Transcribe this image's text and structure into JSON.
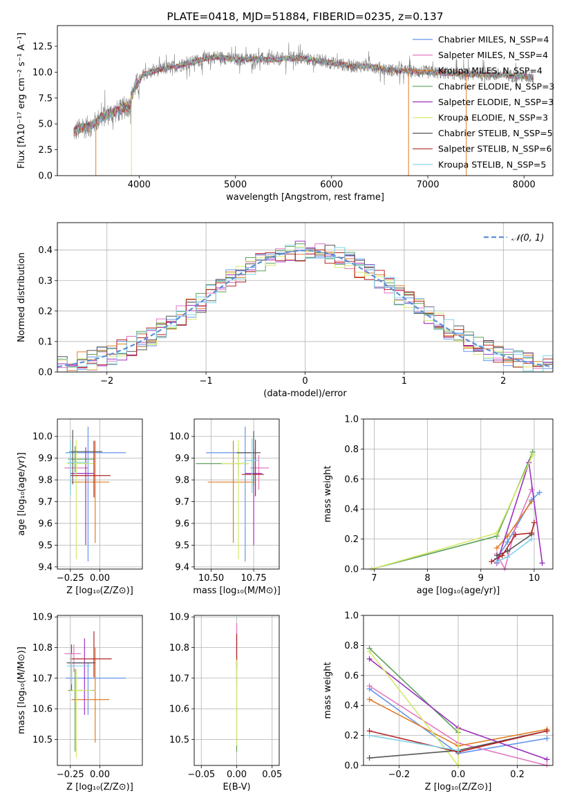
{
  "colors": {
    "chabrier_miles": "#6495ed",
    "salpeter_miles": "#e377c2",
    "kroupa_miles": "#e07b24",
    "chabrier_elodie": "#5aa05a",
    "salpeter_elodie": "#9b30c0",
    "kroupa_elodie": "#d4e86a",
    "chabrier_stelib": "#555555",
    "salpeter_stelib": "#b22222",
    "kroupa_stelib": "#7fd3e6",
    "gauss": "#5b8fd8"
  },
  "chart_data": [
    {
      "id": "spectrum",
      "type": "line",
      "title": "PLATE=0418, MJD=51884, FIBERID=0235, z=0.137",
      "xlabel": "wavelength [Angstrom, rest frame]",
      "ylabel": "Flux [fλ10⁻¹⁷ erg cm⁻² s⁻¹ A⁻¹]",
      "xlim": [
        3150,
        8300
      ],
      "ylim": [
        0,
        14.5
      ],
      "xticks": [
        "4000",
        "5000",
        "6000",
        "7000",
        "8000"
      ],
      "yticks": [
        "0.0",
        "2.5",
        "5.0",
        "7.5",
        "10.0",
        "12.5"
      ],
      "legend_position": "top-right",
      "legend": [
        {
          "text": "Chabrier MILES, N_SSP=4",
          "color": "#6495ed"
        },
        {
          "text": "Salpeter MILES, N_SSP=4",
          "color": "#e377c2"
        },
        {
          "text": "Kroupa MILES, N_SSP=4",
          "color": "#e07b24"
        },
        {
          "text": "Chabrier ELODIE, N_SSP=3",
          "color": "#5aa05a"
        },
        {
          "text": "Salpeter ELODIE, N_SSP=3",
          "color": "#9b30c0"
        },
        {
          "text": "Kroupa ELODIE, N_SSP=3",
          "color": "#d4e86a"
        },
        {
          "text": "Chabrier STELIB, N_SSP=5",
          "color": "#555555"
        },
        {
          "text": "Salpeter STELIB, N_SSP=6",
          "color": "#b22222"
        },
        {
          "text": "Kroupa STELIB, N_SSP=5",
          "color": "#7fd3e6"
        }
      ],
      "continuum": [
        [
          3320,
          4.2
        ],
        [
          3400,
          4.6
        ],
        [
          3500,
          4.8
        ],
        [
          3600,
          5.6
        ],
        [
          3700,
          6.0
        ],
        [
          3800,
          6.3
        ],
        [
          3900,
          6.8
        ],
        [
          3950,
          8.5
        ],
        [
          4050,
          9.8
        ],
        [
          4200,
          10.2
        ],
        [
          4400,
          10.6
        ],
        [
          4600,
          11.1
        ],
        [
          4800,
          11.5
        ],
        [
          5000,
          11.2
        ],
        [
          5200,
          11.3
        ],
        [
          5400,
          11.2
        ],
        [
          5600,
          11.4
        ],
        [
          5800,
          11.2
        ],
        [
          6000,
          10.9
        ],
        [
          6200,
          10.6
        ],
        [
          6400,
          10.6
        ],
        [
          6600,
          10.2
        ],
        [
          6800,
          10.1
        ],
        [
          7000,
          10.0
        ],
        [
          7200,
          9.9
        ],
        [
          7400,
          9.8
        ],
        [
          7600,
          9.8
        ],
        [
          7800,
          9.7
        ],
        [
          8000,
          9.6
        ],
        [
          8100,
          9.5
        ]
      ],
      "model_dips": [
        {
          "x": 3550,
          "color": "#e07b24"
        },
        {
          "x": 3920,
          "color": "#d4e86a"
        },
        {
          "x": 6800,
          "color": "#e07b24"
        },
        {
          "x": 7400,
          "color": "#e07b24"
        }
      ]
    },
    {
      "id": "residuals",
      "type": "bar",
      "xlabel": "(data-model)/error",
      "ylabel": "Normed distribution",
      "xlim": [
        -2.5,
        2.5
      ],
      "ylim": [
        0,
        0.49
      ],
      "xticks": [
        "−2",
        "−1",
        "0",
        "1",
        "2"
      ],
      "yticks": [
        "0.0",
        "0.1",
        "0.2",
        "0.3",
        "0.4"
      ],
      "grid": true,
      "legend_position": "top-right",
      "legend": [
        {
          "text": "𝒩(0, 1)",
          "color": "#5b8fd8"
        }
      ],
      "bin_width": 0.1
    },
    {
      "id": "age-Z",
      "type": "scatter",
      "xlabel": "Z [log₁₀(Z/Z⊙)]",
      "ylabel": "age  [log₁₀(age/yr)]",
      "xlim": [
        -0.36,
        0.36
      ],
      "ylim": [
        9.39,
        10.08
      ],
      "xticks": [
        "−0.25",
        "0.00"
      ],
      "yticks": [
        "9.4",
        "9.5",
        "9.6",
        "9.7",
        "9.8",
        "9.9",
        "10.0"
      ],
      "grid": true,
      "points": [
        {
          "x": -0.1,
          "y": 9.925,
          "xerr": [
            0.19,
            0.32
          ],
          "yerr": [
            0.5,
            0.12
          ],
          "color": "#6495ed"
        },
        {
          "x": -0.25,
          "y": 9.855,
          "xerr": [
            0.05,
            0.15
          ],
          "yerr": [
            0.1,
            0.06
          ],
          "color": "#e377c2"
        },
        {
          "x": -0.04,
          "y": 9.79,
          "xerr": [
            0.2,
            0.12
          ],
          "yerr": [
            0.28,
            0.19
          ],
          "color": "#e07b24"
        },
        {
          "x": -0.21,
          "y": 9.895,
          "xerr": [
            0.06,
            0.16
          ],
          "yerr": [
            0.06,
            0.06
          ],
          "color": "#5aa05a"
        },
        {
          "x": -0.12,
          "y": 9.83,
          "xerr": [
            0.13,
            0.07
          ],
          "yerr": [
            0.33,
            0.12
          ],
          "color": "#9b30c0"
        },
        {
          "x": -0.2,
          "y": 9.875,
          "xerr": [
            0.08,
            0.17
          ],
          "yerr": [
            0.44,
            0.11
          ],
          "color": "#d4e86a"
        },
        {
          "x": -0.23,
          "y": 9.93,
          "xerr": [
            0.03,
            0.25
          ],
          "yerr": [
            0.15,
            0.1
          ],
          "color": "#555555"
        },
        {
          "x": -0.05,
          "y": 9.82,
          "xerr": [
            0.2,
            0.14
          ],
          "yerr": [
            0.1,
            0.16
          ],
          "color": "#b22222"
        },
        {
          "x": -0.25,
          "y": 9.88,
          "xerr": [
            0.02,
            0.16
          ],
          "yerr": [
            0.15,
            0.1
          ],
          "color": "#7fd3e6"
        }
      ]
    },
    {
      "id": "age-mass",
      "type": "scatter",
      "xlabel": "mass [log₁₀(M/M⊙)]",
      "ylabel": "",
      "xlim": [
        10.4,
        10.9
      ],
      "ylim": [
        9.39,
        10.08
      ],
      "xticks": [
        "10.50",
        "10.75"
      ],
      "yticks": [
        "9.4",
        "9.5",
        "9.6",
        "9.7",
        "9.8",
        "9.9",
        "10.0"
      ],
      "grid": true,
      "points": [
        {
          "x": 10.7,
          "y": 9.925,
          "xerr": [
            0.23,
            0.05
          ],
          "yerr": [
            0.5,
            0.12
          ],
          "color": "#6495ed"
        },
        {
          "x": 10.78,
          "y": 9.855,
          "xerr": [
            0.05,
            0.06
          ],
          "yerr": [
            0.1,
            0.06
          ],
          "color": "#e377c2"
        },
        {
          "x": 10.63,
          "y": 9.79,
          "xerr": [
            0.15,
            0.12
          ],
          "yerr": [
            0.28,
            0.19
          ],
          "color": "#e07b24"
        },
        {
          "x": 10.66,
          "y": 9.875,
          "xerr": [
            0.25,
            0.06
          ],
          "yerr": [
            0.06,
            0.06
          ],
          "color": "#5aa05a"
        },
        {
          "x": 10.75,
          "y": 9.83,
          "xerr": [
            0.05,
            0.05
          ],
          "yerr": [
            0.33,
            0.12
          ],
          "color": "#9b30c0"
        },
        {
          "x": 10.66,
          "y": 9.875,
          "xerr": [
            0.1,
            0.06
          ],
          "yerr": [
            0.44,
            0.11
          ],
          "color": "#d4e86a"
        },
        {
          "x": 10.75,
          "y": 9.925,
          "xerr": [
            0.1,
            0.04
          ],
          "yerr": [
            0.15,
            0.1
          ],
          "color": "#555555"
        },
        {
          "x": 10.76,
          "y": 9.825,
          "xerr": [
            0.08,
            0.05
          ],
          "yerr": [
            0.1,
            0.16
          ],
          "color": "#b22222"
        },
        {
          "x": 10.74,
          "y": 9.89,
          "xerr": [
            0.04,
            0.04
          ],
          "yerr": [
            0.15,
            0.1
          ],
          "color": "#7fd3e6"
        }
      ]
    },
    {
      "id": "weight-age",
      "type": "line",
      "xlabel": "age  [log₁₀(age/yr)]",
      "ylabel": "mass weight",
      "xlim": [
        6.8,
        10.35
      ],
      "ylim": [
        0,
        1
      ],
      "xticks": [
        "7",
        "8",
        "9",
        "10"
      ],
      "yticks": [
        "0.0",
        "0.2",
        "0.4",
        "0.6",
        "0.8",
        "1.0"
      ],
      "grid": true,
      "series": [
        {
          "color": "#6495ed",
          "points": [
            [
              9.3,
              0.07
            ],
            [
              9.5,
              0.18
            ],
            [
              9.95,
              0.46
            ],
            [
              10.1,
              0.51
            ]
          ]
        },
        {
          "color": "#e377c2",
          "points": [
            [
              9.3,
              0.1
            ],
            [
              9.45,
              0.0
            ],
            [
              9.65,
              0.28
            ],
            [
              9.95,
              0.53
            ]
          ]
        },
        {
          "color": "#e07b24",
          "points": [
            [
              9.3,
              0.14
            ],
            [
              9.5,
              0.22
            ],
            [
              9.95,
              0.45
            ]
          ]
        },
        {
          "color": "#5aa05a",
          "points": [
            [
              6.95,
              0.0
            ],
            [
              9.3,
              0.22
            ],
            [
              9.97,
              0.78
            ]
          ]
        },
        {
          "color": "#9b30c0",
          "points": [
            [
              9.3,
              0.04
            ],
            [
              9.9,
              0.71
            ],
            [
              10.15,
              0.04
            ]
          ]
        },
        {
          "color": "#d4e86a",
          "points": [
            [
              6.95,
              0.0
            ],
            [
              9.3,
              0.24
            ],
            [
              9.97,
              0.76
            ]
          ]
        },
        {
          "color": "#555555",
          "points": [
            [
              9.3,
              0.09
            ],
            [
              9.5,
              0.12
            ],
            [
              9.95,
              0.23
            ]
          ]
        },
        {
          "color": "#b22222",
          "points": [
            [
              9.2,
              0.05
            ],
            [
              9.4,
              0.09
            ],
            [
              9.65,
              0.23
            ],
            [
              9.95,
              0.24
            ],
            [
              10.0,
              0.31
            ]
          ]
        },
        {
          "color": "#7fd3e6",
          "points": [
            [
              9.3,
              0.05
            ],
            [
              9.5,
              0.08
            ],
            [
              9.95,
              0.2
            ]
          ]
        }
      ]
    },
    {
      "id": "mass-Z",
      "type": "scatter",
      "xlabel": "Z [log₁₀(Z/Z⊙)]",
      "ylabel": "mass [log₁₀(M/M⊙)]",
      "xlim": [
        -0.36,
        0.36
      ],
      "ylim": [
        10.415,
        10.905
      ],
      "xticks": [
        "−0.25",
        "0.00"
      ],
      "yticks": [
        "10.5",
        "10.6",
        "10.7",
        "10.8",
        "10.9"
      ],
      "grid": true,
      "points": [
        {
          "x": -0.1,
          "y": 10.7,
          "xerr": [
            0.19,
            0.32
          ],
          "yerr": [
            0.12,
            0.05
          ],
          "color": "#6495ed"
        },
        {
          "x": -0.22,
          "y": 10.78,
          "xerr": [
            0.08,
            0.06
          ],
          "yerr": [
            0.06,
            0.03
          ],
          "color": "#e377c2"
        },
        {
          "x": -0.04,
          "y": 10.63,
          "xerr": [
            0.2,
            0.12
          ],
          "yerr": [
            0.14,
            0.17
          ],
          "color": "#e07b24"
        },
        {
          "x": -0.21,
          "y": 10.66,
          "xerr": [
            0.06,
            0.16
          ],
          "yerr": [
            0.2,
            0.07
          ],
          "color": "#5aa05a"
        },
        {
          "x": -0.13,
          "y": 10.75,
          "xerr": [
            0.12,
            0.06
          ],
          "yerr": [
            0.17,
            0.08
          ],
          "color": "#9b30c0"
        },
        {
          "x": -0.2,
          "y": 10.66,
          "xerr": [
            0.05,
            0.14
          ],
          "yerr": [
            0.22,
            0.07
          ],
          "color": "#d4e86a"
        },
        {
          "x": -0.24,
          "y": 10.75,
          "xerr": [
            0.04,
            0.2
          ],
          "yerr": [
            0.09,
            0.06
          ],
          "color": "#555555"
        },
        {
          "x": -0.05,
          "y": 10.763,
          "xerr": [
            0.2,
            0.15
          ],
          "yerr": [
            0.06,
            0.09
          ],
          "color": "#b22222"
        },
        {
          "x": -0.24,
          "y": 10.74,
          "xerr": [
            0.04,
            0.16
          ],
          "yerr": [
            0.06,
            0.04
          ],
          "color": "#7fd3e6"
        }
      ]
    },
    {
      "id": "mass-ebv",
      "type": "scatter",
      "xlabel": "E(B-V)",
      "ylabel": "",
      "xlim": [
        -0.06,
        0.06
      ],
      "ylim": [
        10.415,
        10.905
      ],
      "xticks": [
        "−0.05",
        "0.00",
        "0.05"
      ],
      "yticks": [
        "10.5",
        "10.6",
        "10.7",
        "10.8",
        "10.9"
      ],
      "grid": true,
      "points": [
        {
          "x": 0.0,
          "y": 10.7,
          "xerr": [
            0,
            0
          ],
          "yerr": [
            0.24,
            0.18
          ],
          "color": "#5aa05a"
        },
        {
          "x": 0.0,
          "y": 10.78,
          "xerr": [
            0,
            0
          ],
          "yerr": [
            0.1,
            0.1
          ],
          "color": "#e377c2"
        },
        {
          "x": 0.0,
          "y": 10.78,
          "xerr": [
            0,
            0
          ],
          "yerr": [
            0.05,
            0.065
          ],
          "color": "#b22222"
        },
        {
          "x": 0.0,
          "y": 10.7,
          "xerr": [
            0,
            0
          ],
          "yerr": [
            0.22,
            0.06
          ],
          "color": "#d4e86a"
        }
      ]
    },
    {
      "id": "weight-Z",
      "type": "line",
      "xlabel": "Z [log₁₀(Z/Z⊙)]",
      "ylabel": "mass weight",
      "xlim": [
        -0.32,
        0.32
      ],
      "ylim": [
        0,
        1
      ],
      "xticks": [
        "−0.2",
        "0.0",
        "0.2"
      ],
      "yticks": [
        "0.0",
        "0.2",
        "0.4",
        "0.6",
        "0.8",
        "1.0"
      ],
      "grid": true,
      "series": [
        {
          "color": "#6495ed",
          "points": [
            [
              -0.3,
              0.51
            ],
            [
              0.0,
              0.08
            ],
            [
              0.3,
              0.18
            ]
          ]
        },
        {
          "color": "#e377c2",
          "points": [
            [
              -0.3,
              0.53
            ],
            [
              0.0,
              0.15
            ],
            [
              0.3,
              0.0
            ]
          ]
        },
        {
          "color": "#e07b24",
          "points": [
            [
              -0.3,
              0.44
            ],
            [
              0.0,
              0.13
            ],
            [
              0.3,
              0.24
            ]
          ]
        },
        {
          "color": "#5aa05a",
          "points": [
            [
              -0.3,
              0.78
            ],
            [
              0.0,
              0.22
            ]
          ]
        },
        {
          "color": "#9b30c0",
          "points": [
            [
              -0.3,
              0.71
            ],
            [
              0.0,
              0.25
            ],
            [
              0.3,
              0.04
            ]
          ]
        },
        {
          "color": "#d4e86a",
          "points": [
            [
              -0.3,
              0.76
            ],
            [
              0.0,
              0.0
            ],
            [
              0.0,
              0.24
            ]
          ]
        },
        {
          "color": "#555555",
          "points": [
            [
              -0.3,
              0.05
            ],
            [
              0.0,
              0.1
            ],
            [
              0.3,
              0.23
            ]
          ]
        },
        {
          "color": "#b22222",
          "points": [
            [
              -0.3,
              0.23
            ],
            [
              0.0,
              0.09
            ],
            [
              0.3,
              0.23
            ]
          ]
        },
        {
          "color": "#7fd3e6",
          "points": [
            [
              -0.3,
              0.2
            ],
            [
              0.0,
              0.1
            ]
          ]
        }
      ]
    }
  ]
}
